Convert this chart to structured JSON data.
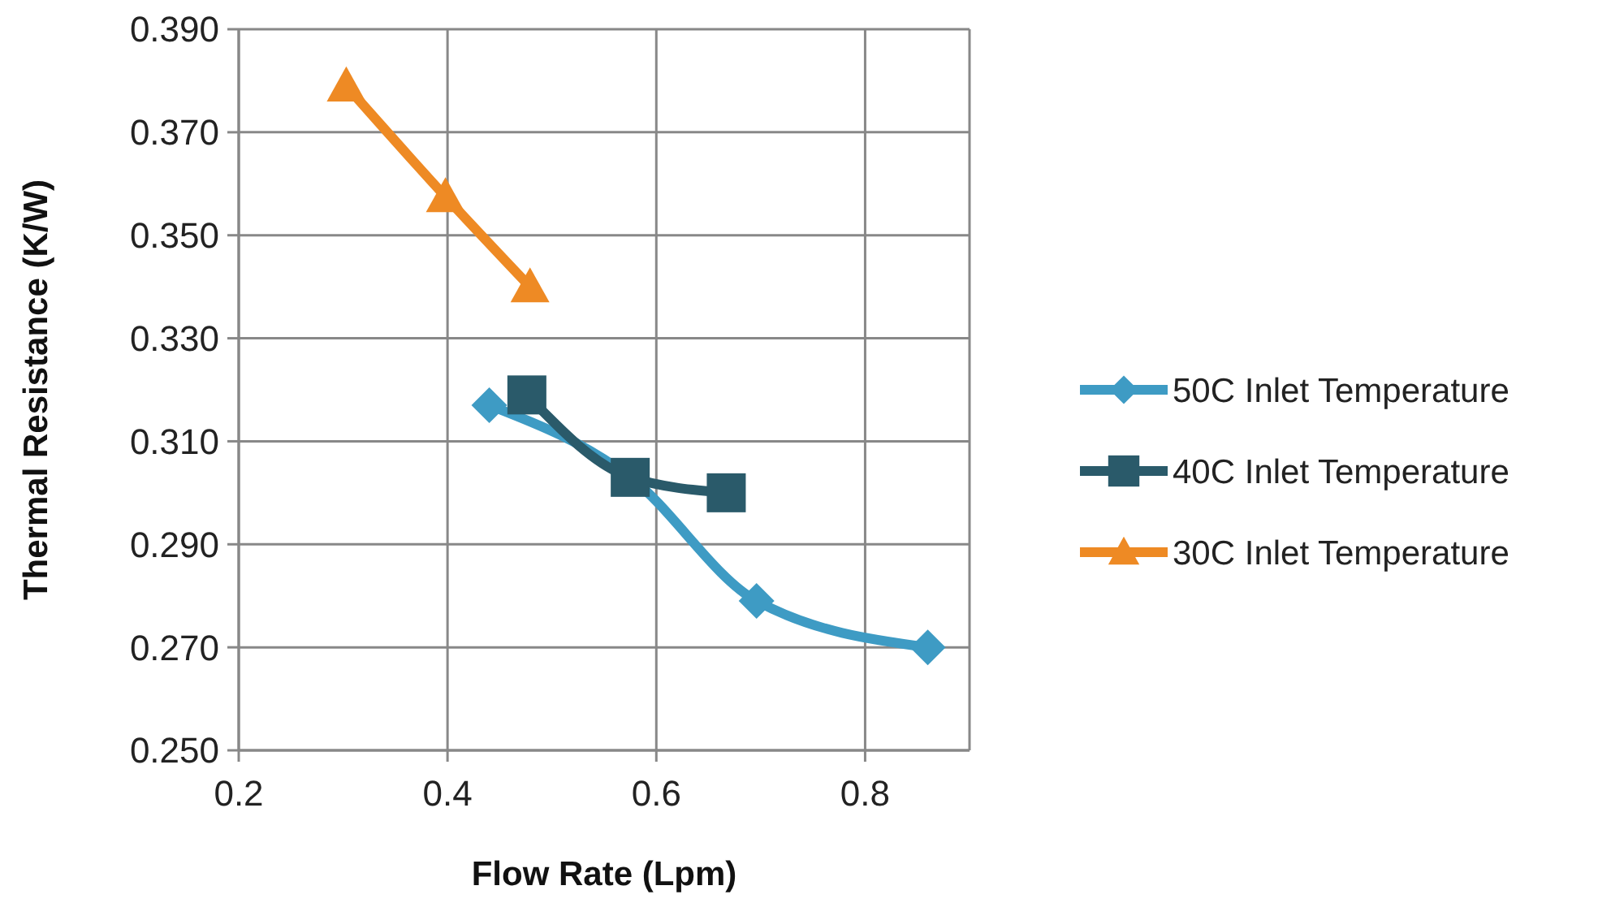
{
  "chart_data": {
    "type": "line",
    "xlabel": "Flow Rate (Lpm)",
    "ylabel": "Thermal Resistance (K/W)",
    "xlim": [
      0.2,
      0.9
    ],
    "xticks": [
      0.2,
      0.4,
      0.6,
      0.8
    ],
    "ylim": [
      0.25,
      0.39
    ],
    "yticks": [
      {
        "value": 0.25,
        "label": "0.250"
      },
      {
        "value": 0.27,
        "label": "0.270"
      },
      {
        "value": 0.29,
        "label": "0.290"
      },
      {
        "value": 0.31,
        "label": "0.310"
      },
      {
        "value": 0.33,
        "label": "0.330"
      },
      {
        "value": 0.35,
        "label": "0.350"
      },
      {
        "value": 0.37,
        "label": "0.370"
      },
      {
        "value": 0.39,
        "label": "0.390"
      }
    ],
    "grid": true,
    "legend": "right",
    "series": [
      {
        "name": "50C Inlet Temperature",
        "color": "#3e9bc4",
        "marker": "diamond",
        "x": [
          0.44,
          0.575,
          0.696,
          0.86
        ],
        "values": [
          0.317,
          0.303,
          0.279,
          0.27
        ]
      },
      {
        "name": "40C Inlet Temperature",
        "color": "#2a5a6a",
        "marker": "square",
        "x": [
          0.476,
          0.575,
          0.667
        ],
        "values": [
          0.319,
          0.303,
          0.3
        ]
      },
      {
        "name": "30C Inlet Temperature",
        "color": "#ee8a24",
        "marker": "triangle",
        "x": [
          0.303,
          0.398,
          0.479
        ],
        "values": [
          0.379,
          0.3575,
          0.34
        ]
      }
    ]
  }
}
